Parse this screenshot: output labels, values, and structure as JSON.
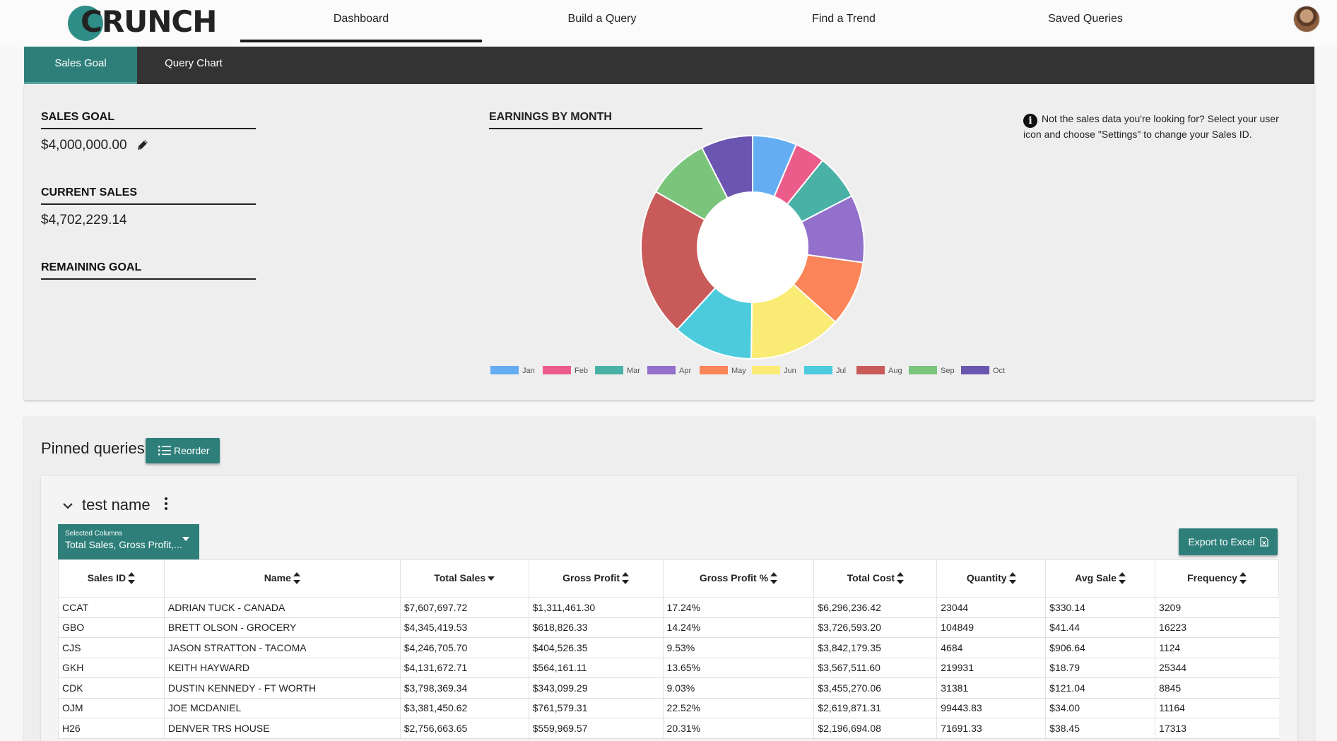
{
  "nav": {
    "logo": "CRUNCH",
    "tabs": [
      {
        "label": "Dashboard",
        "active": true
      },
      {
        "label": "Build a Query"
      },
      {
        "label": "Find a Trend"
      },
      {
        "label": "Saved Queries"
      }
    ]
  },
  "subnav": {
    "tabs": [
      {
        "label": "Sales Goal",
        "active": true
      },
      {
        "label": "Query Chart"
      }
    ]
  },
  "stats": {
    "sales_goal_label": "SALES GOAL",
    "sales_goal_value": "$4,000,000.00",
    "current_sales_label": "CURRENT SALES",
    "current_sales_value": "$4,702,229.14",
    "remaining_goal_label": "REMAINING GOAL"
  },
  "info_note": "Not the sales data you're looking for? Select your user icon and choose \"Settings\" to change your Sales ID.",
  "icons": {
    "edit": "pencil-icon",
    "info": "info-icon",
    "reorder": "list-icon",
    "export": "excel-icon",
    "collapse": "chevron-down-icon",
    "menu": "kebab-menu-icon",
    "avatar": "user-avatar"
  },
  "chart_data": {
    "type": "pie",
    "title": "EARNINGS BY MONTH",
    "donut": true,
    "legend_position": "bottom",
    "categories": [
      "Jan",
      "Feb",
      "Mar",
      "Apr",
      "May",
      "Jun",
      "Jul",
      "Aug",
      "Sep",
      "Oct"
    ],
    "values": [
      6.4,
      4.4,
      6.6,
      9.8,
      9.5,
      13.5,
      11.6,
      21.5,
      9.2,
      7.5
    ],
    "colors": [
      "#64adf2",
      "#ec5c8b",
      "#49b1a6",
      "#9270cc",
      "#fb8558",
      "#faeb75",
      "#4ccbdd",
      "#c95a5a",
      "#7bc47c",
      "#6a56b0"
    ]
  },
  "pinned": {
    "title": "Pinned queries",
    "reorder_label": "Reorder",
    "query": {
      "name": "test name",
      "selected_columns_label": "Selected Columns",
      "selected_columns_value": "Total Sales, Gross Profit,...",
      "export_label": "Export to Excel",
      "columns": [
        "Sales ID",
        "Name",
        "Total Sales",
        "Gross Profit",
        "Gross Profit %",
        "Total Cost",
        "Quantity",
        "Avg Sale",
        "Frequency"
      ],
      "sorted_column": "Total Sales",
      "rows": [
        [
          "CCAT",
          "ADRIAN TUCK - CANADA",
          "$7,607,697.72",
          "$1,311,461.30",
          "17.24%",
          "$6,296,236.42",
          "23044",
          "$330.14",
          "3209"
        ],
        [
          "GBO",
          "BRETT OLSON - GROCERY",
          "$4,345,419.53",
          "$618,826.33",
          "14.24%",
          "$3,726,593.20",
          "104849",
          "$41.44",
          "16223"
        ],
        [
          "CJS",
          "JASON STRATTON - TACOMA",
          "$4,246,705.70",
          "$404,526.35",
          "9.53%",
          "$3,842,179.35",
          "4684",
          "$906.64",
          "1124"
        ],
        [
          "GKH",
          "KEITH HAYWARD",
          "$4,131,672.71",
          "$564,161.11",
          "13.65%",
          "$3,567,511.60",
          "219931",
          "$18.79",
          "25344"
        ],
        [
          "CDK",
          "DUSTIN KENNEDY - FT WORTH",
          "$3,798,369.34",
          "$343,099.29",
          "9.03%",
          "$3,455,270.06",
          "31381",
          "$121.04",
          "8845"
        ],
        [
          "OJM",
          "JOE MCDANIEL",
          "$3,381,450.62",
          "$761,579.31",
          "22.52%",
          "$2,619,871.31",
          "99443.83",
          "$34.00",
          "11164"
        ],
        [
          "H26",
          "DENVER TRS HOUSE",
          "$2,756,663.65",
          "$559,969.57",
          "20.31%",
          "$2,196,694.08",
          "71691.33",
          "$38.45",
          "17313"
        ]
      ]
    }
  }
}
